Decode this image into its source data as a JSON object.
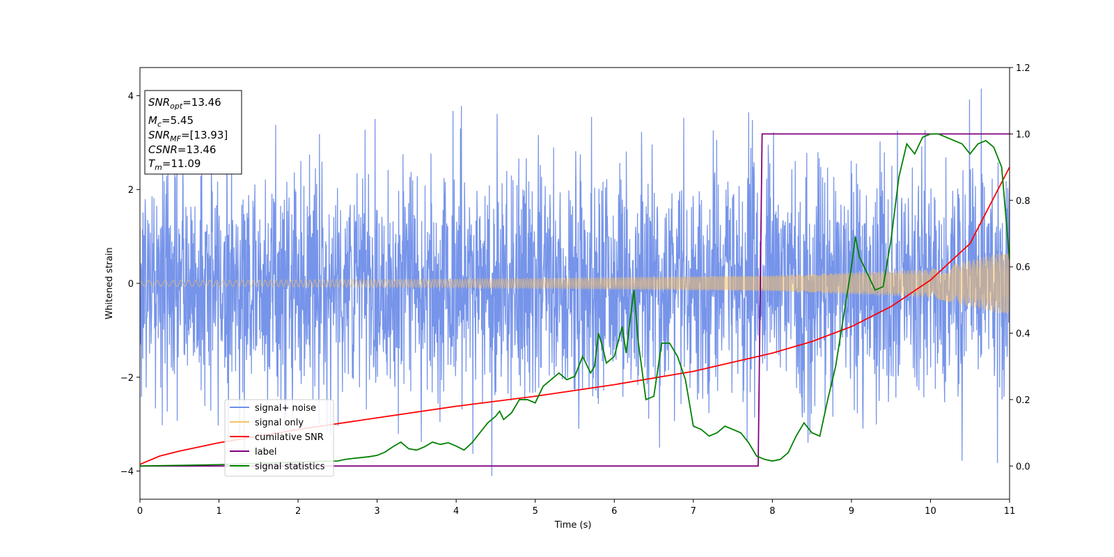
{
  "chart_data": {
    "type": "line",
    "xlabel": "Time (s)",
    "ylabel": "Whitened strain",
    "xlim": [
      0,
      11
    ],
    "ylim": [
      -4.6,
      4.6
    ],
    "y2lim": [
      -0.1,
      1.2
    ],
    "x_ticks": [
      "0",
      "1",
      "2",
      "3",
      "4",
      "5",
      "6",
      "7",
      "8",
      "9",
      "10",
      "11"
    ],
    "y_ticks": [
      "−4",
      "−2",
      "0",
      "2",
      "4"
    ],
    "y2_ticks": [
      "0.0",
      "0.2",
      "0.4",
      "0.6",
      "0.8",
      "1.0",
      "1.2"
    ],
    "legend_position": "lower-left",
    "grid": false,
    "colors": {
      "signal_noise": "#6f8ee8",
      "signal_only": "#f5c06a",
      "overlap": "#c09a72",
      "cumulative_snr": "#ff0000",
      "label": "#800080",
      "signal_statistics": "#008000"
    },
    "series": [
      {
        "name": "signal+ noise",
        "axis": "left",
        "kind": "noise",
        "approx_envelope": {
          "typical_max": 2.2,
          "peak_max": 4.2,
          "typical_min": -2.3,
          "peak_min": -4.15
        }
      },
      {
        "name": "signal only",
        "axis": "left",
        "kind": "chirp",
        "amplitude": {
          "x": [
            0,
            4,
            8,
            10,
            11
          ],
          "y": [
            0.06,
            0.09,
            0.17,
            0.3,
            0.7
          ]
        }
      },
      {
        "name": "cumilative SNR",
        "axis": "right",
        "x": [
          0,
          0.25,
          0.5,
          1,
          2,
          3,
          4,
          5,
          6,
          7,
          8,
          8.5,
          9,
          9.5,
          10,
          10.5,
          11
        ],
        "y": [
          0.005,
          0.03,
          0.045,
          0.07,
          0.11,
          0.145,
          0.18,
          0.21,
          0.245,
          0.285,
          0.34,
          0.375,
          0.42,
          0.48,
          0.56,
          0.67,
          0.9
        ]
      },
      {
        "name": "label",
        "axis": "right",
        "x": [
          0,
          7.82,
          7.87,
          11
        ],
        "y": [
          0,
          0,
          1,
          1
        ]
      },
      {
        "name": "signal statistics",
        "axis": "right",
        "x": [
          0,
          0.5,
          1,
          1.5,
          2,
          2.5,
          2.6,
          2.7,
          2.9,
          3.0,
          3.1,
          3.2,
          3.3,
          3.4,
          3.5,
          3.6,
          3.7,
          3.8,
          3.9,
          4.0,
          4.1,
          4.2,
          4.3,
          4.4,
          4.5,
          4.55,
          4.6,
          4.7,
          4.8,
          4.9,
          5.0,
          5.1,
          5.2,
          5.3,
          5.4,
          5.5,
          5.6,
          5.7,
          5.75,
          5.8,
          5.85,
          5.9,
          6.0,
          6.1,
          6.15,
          6.2,
          6.25,
          6.3,
          6.4,
          6.5,
          6.6,
          6.7,
          6.8,
          6.9,
          7.0,
          7.1,
          7.2,
          7.3,
          7.4,
          7.5,
          7.6,
          7.7,
          7.8,
          7.9,
          8.0,
          8.1,
          8.2,
          8.3,
          8.4,
          8.5,
          8.6,
          8.7,
          8.8,
          8.9,
          9.0,
          9.05,
          9.1,
          9.2,
          9.3,
          9.4,
          9.5,
          9.6,
          9.7,
          9.8,
          9.9,
          10.0,
          10.1,
          10.2,
          10.3,
          10.4,
          10.5,
          10.6,
          10.7,
          10.8,
          10.9,
          11.0
        ],
        "y": [
          0.0,
          0.002,
          0.004,
          0.008,
          0.012,
          0.015,
          0.02,
          0.023,
          0.028,
          0.032,
          0.042,
          0.058,
          0.072,
          0.052,
          0.048,
          0.058,
          0.072,
          0.065,
          0.07,
          0.06,
          0.048,
          0.07,
          0.1,
          0.13,
          0.15,
          0.165,
          0.14,
          0.16,
          0.2,
          0.2,
          0.19,
          0.24,
          0.26,
          0.28,
          0.26,
          0.27,
          0.33,
          0.28,
          0.3,
          0.4,
          0.36,
          0.31,
          0.33,
          0.42,
          0.34,
          0.44,
          0.53,
          0.38,
          0.2,
          0.21,
          0.37,
          0.37,
          0.33,
          0.26,
          0.12,
          0.11,
          0.09,
          0.1,
          0.12,
          0.11,
          0.1,
          0.07,
          0.03,
          0.02,
          0.015,
          0.02,
          0.04,
          0.09,
          0.13,
          0.1,
          0.09,
          0.2,
          0.3,
          0.45,
          0.6,
          0.69,
          0.63,
          0.58,
          0.53,
          0.54,
          0.68,
          0.87,
          0.97,
          0.94,
          0.99,
          1.0,
          1.0,
          0.99,
          0.98,
          0.97,
          0.94,
          0.97,
          0.98,
          0.96,
          0.9,
          0.62
        ]
      }
    ],
    "legend": [
      {
        "label": "signal+ noise",
        "color": "#6f8ee8"
      },
      {
        "label": "signal only",
        "color": "#f5c06a"
      },
      {
        "label": "cumilative SNR",
        "color": "#ff0000"
      },
      {
        "label": "label",
        "color": "#800080"
      },
      {
        "label": "signal statistics",
        "color": "#008000"
      }
    ],
    "annotation": {
      "snr_opt": {
        "symbol": "SNR",
        "sub": "opt",
        "value": "=13.46"
      },
      "mc": {
        "symbol": "M",
        "sub": "c",
        "value": "=5.45"
      },
      "snr_mf": {
        "symbol": "SNR",
        "sub": "MF",
        "value": "=[13.93]"
      },
      "csnr": {
        "symbol": "CSNR",
        "value": "=13.46"
      },
      "tm": {
        "symbol": "T",
        "sub": "m",
        "value": "=11.09"
      }
    }
  }
}
